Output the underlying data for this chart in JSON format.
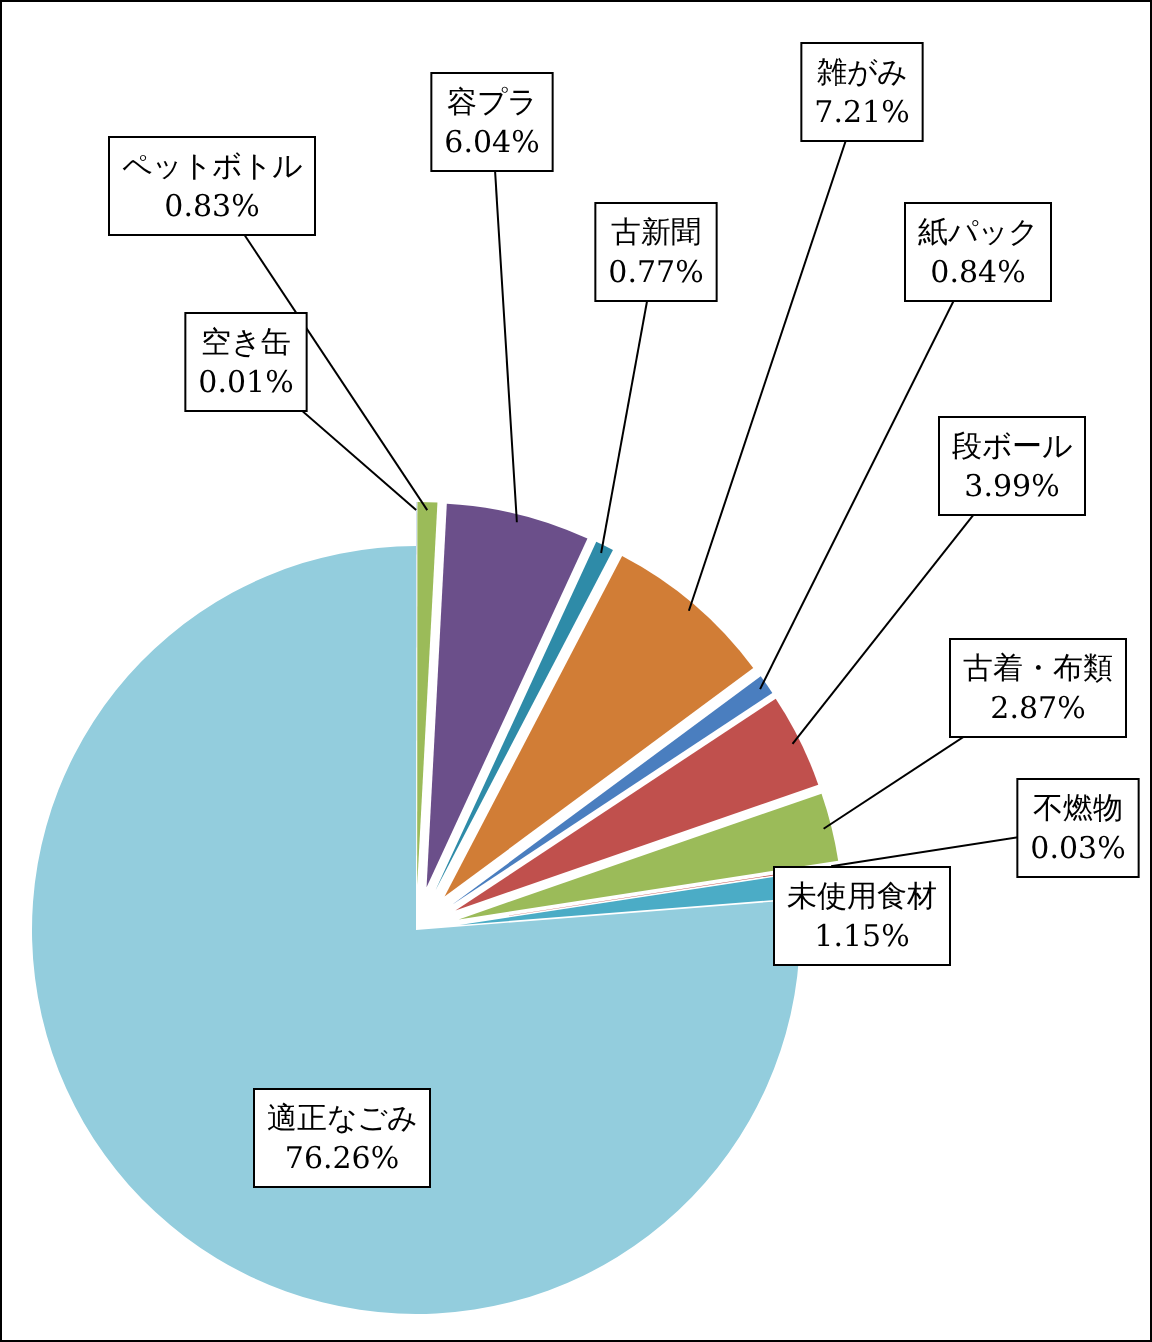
{
  "chart_data": {
    "type": "pie",
    "categories": [
      "空き缶",
      "ペットボトル",
      "容プラ",
      "古新聞",
      "雑がみ",
      "紙パック",
      "段ボール",
      "古着・布類",
      "不燃物",
      "未使用食材",
      "適正なごみ"
    ],
    "values": [
      0.01,
      0.83,
      6.04,
      0.77,
      7.21,
      0.84,
      3.99,
      2.87,
      0.03,
      1.15,
      76.26
    ],
    "value_labels": [
      "0.01%",
      "0.83%",
      "6.04%",
      "0.77%",
      "7.21%",
      "0.84%",
      "3.99%",
      "2.87%",
      "0.03%",
      "1.15%",
      "76.26%"
    ],
    "colors": [
      "#4f81bd",
      "#9bbb59",
      "#6b4f8a",
      "#2e8ba8",
      "#d17d36",
      "#4a7ebf",
      "#c0504d",
      "#9bbb59",
      "#c0504d",
      "#4bacc6",
      "#93cddd"
    ],
    "legend": false
  }
}
